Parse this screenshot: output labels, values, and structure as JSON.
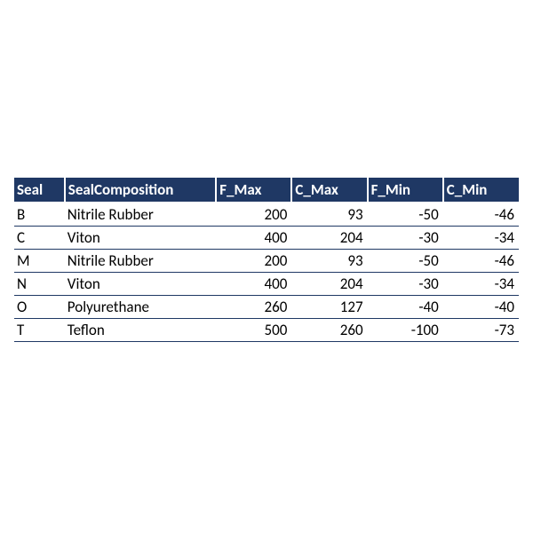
{
  "table": {
    "type": "table",
    "header_background": "#1f3864",
    "header_text_color": "#ffffff",
    "header_font_weight": "bold",
    "header_fontsize": 17,
    "body_fontsize": 17,
    "body_text_color": "#000000",
    "row_border_color": "#1f3864",
    "row_border_width": 1,
    "header_cell_divider_color": "#ffffff",
    "background_color": "#ffffff",
    "columns": [
      {
        "key": "seal",
        "label": "Seal",
        "align": "left",
        "width_pct": 10
      },
      {
        "key": "comp",
        "label": "SealComposition",
        "align": "left",
        "width_pct": 30
      },
      {
        "key": "fmax",
        "label": "F_Max",
        "align": "right",
        "width_pct": 15
      },
      {
        "key": "cmax",
        "label": "C_Max",
        "align": "right",
        "width_pct": 15
      },
      {
        "key": "fmin",
        "label": "F_Min",
        "align": "right",
        "width_pct": 15
      },
      {
        "key": "cmin",
        "label": "C_Min",
        "align": "right",
        "width_pct": 15
      }
    ],
    "rows": [
      {
        "seal": "B",
        "comp": "Nitrile Rubber",
        "fmax": 200,
        "cmax": 93,
        "fmin": -50,
        "cmin": -46
      },
      {
        "seal": "C",
        "comp": "Viton",
        "fmax": 400,
        "cmax": 204,
        "fmin": -30,
        "cmin": -34
      },
      {
        "seal": "M",
        "comp": "Nitrile Rubber",
        "fmax": 200,
        "cmax": 93,
        "fmin": -50,
        "cmin": -46
      },
      {
        "seal": "N",
        "comp": "Viton",
        "fmax": 400,
        "cmax": 204,
        "fmin": -30,
        "cmin": -34
      },
      {
        "seal": "O",
        "comp": "Polyurethane",
        "fmax": 260,
        "cmax": 127,
        "fmin": -40,
        "cmin": -40
      },
      {
        "seal": "T",
        "comp": "Teflon",
        "fmax": 500,
        "cmax": 260,
        "fmin": -100,
        "cmin": -73
      }
    ]
  }
}
